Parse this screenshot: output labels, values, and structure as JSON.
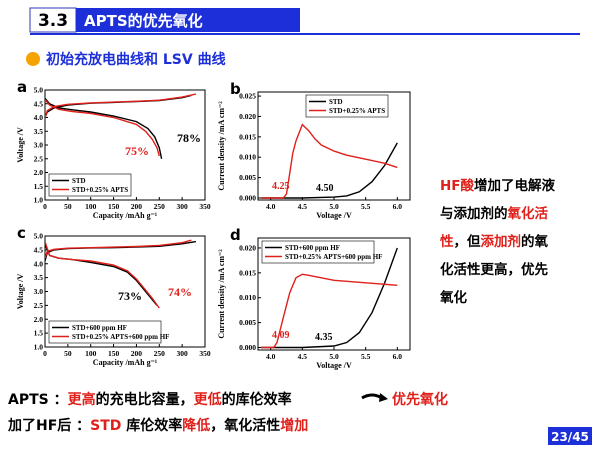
{
  "header": {
    "number": "3.3",
    "title": "APTS的优先氧化"
  },
  "subtitle": "初始充放电曲线和 LSV 曲线",
  "charts": [
    {
      "type": "line",
      "panel": "a",
      "xlabel": "Capacity /mAh g⁻¹",
      "ylabel": "Voltage /V",
      "xlim": [
        0,
        350
      ],
      "ylim": [
        1.0,
        5.0
      ],
      "xticks": [
        0,
        50,
        100,
        150,
        200,
        250,
        300,
        350
      ],
      "yticks": [
        {
          "value": 1,
          "label": "1.0"
        },
        1.5,
        {
          "value": 2,
          "label": "2.0"
        },
        2.5,
        {
          "value": 3,
          "label": "3.0"
        },
        3.5,
        {
          "value": 4,
          "label": "4.0"
        },
        4.5,
        {
          "value": 5,
          "label": "5.0"
        }
      ],
      "legend": "lower left",
      "series": [
        {
          "name": "STD",
          "color": "#000000",
          "x": [
            0,
            5,
            20,
            50,
            100,
            150,
            200,
            250,
            300,
            320,
            null,
            0,
            10,
            30,
            60,
            100,
            150,
            200,
            225,
            240,
            250,
            255
          ],
          "values": [
            4.0,
            4.2,
            4.35,
            4.45,
            4.52,
            4.55,
            4.58,
            4.62,
            4.72,
            4.8,
            null,
            4.7,
            4.5,
            4.35,
            4.28,
            4.2,
            4.05,
            3.85,
            3.6,
            3.3,
            2.9,
            2.5
          ]
        },
        {
          "name": "STD+0.25% APTS",
          "color": "#e0201b",
          "x": [
            0,
            5,
            20,
            50,
            100,
            150,
            200,
            250,
            300,
            330,
            null,
            0,
            10,
            30,
            60,
            100,
            150,
            200,
            220,
            235,
            245,
            250
          ],
          "values": [
            4.0,
            4.25,
            4.4,
            4.48,
            4.53,
            4.56,
            4.59,
            4.63,
            4.74,
            4.85,
            null,
            4.65,
            4.45,
            4.3,
            4.22,
            4.15,
            4.0,
            3.75,
            3.5,
            3.2,
            2.9,
            2.6
          ]
        }
      ],
      "annotations": [
        {
          "text": "75%",
          "color": "#e0201b"
        },
        {
          "text": "78%",
          "color": "#000000"
        }
      ]
    },
    {
      "type": "line",
      "panel": "b",
      "xlabel": "Voltage /V",
      "ylabel": "Current density /mA cm⁻²",
      "xlim": [
        3.8,
        6.2
      ],
      "ylim": [
        -0.0005,
        0.026
      ],
      "xticks": [
        {
          "value": 4,
          "label": "4.0"
        },
        4.5,
        {
          "value": 5,
          "label": "5.0"
        },
        5.5,
        {
          "value": 6,
          "label": "6.0"
        }
      ],
      "yticks": [
        {
          "value": 0,
          "label": "0.000"
        },
        0.005,
        {
          "value": 0.01,
          "label": "0.010"
        },
        0.015,
        {
          "value": 0.02,
          "label": "0.020"
        },
        0.025
      ],
      "legend": "upper right",
      "series": [
        {
          "name": "STD",
          "color": "#000000",
          "x": [
            3.85,
            4.5,
            5.0,
            5.2,
            5.4,
            5.6,
            5.8,
            6.0
          ],
          "values": [
            0,
            0,
            0.0002,
            0.0005,
            0.0015,
            0.004,
            0.008,
            0.0135
          ]
        },
        {
          "name": "STD+0.25% APTS",
          "color": "#e0201b",
          "x": [
            3.85,
            4.2,
            4.25,
            4.3,
            4.35,
            4.4,
            4.5,
            4.6,
            4.7,
            4.8,
            5.0,
            5.2,
            5.5,
            5.8,
            6.0
          ],
          "values": [
            0,
            0,
            0.001,
            0.006,
            0.011,
            0.014,
            0.018,
            0.0165,
            0.0145,
            0.013,
            0.0115,
            0.0105,
            0.0095,
            0.0085,
            0.0075
          ]
        }
      ],
      "annotations": [
        {
          "text": "4.25",
          "color": "#e0201b"
        },
        {
          "text": "4.50",
          "color": "#000000"
        }
      ]
    },
    {
      "type": "line",
      "panel": "c",
      "xlabel": "Capacity /mAh g⁻¹",
      "ylabel": "Voltage /V",
      "xlim": [
        0,
        350
      ],
      "ylim": [
        1.0,
        5.0
      ],
      "xticks": [
        0,
        50,
        100,
        150,
        200,
        250,
        300,
        350
      ],
      "yticks": [
        {
          "value": 1,
          "label": "1.0"
        },
        1.5,
        {
          "value": 2,
          "label": "2.0"
        },
        2.5,
        {
          "value": 3,
          "label": "3.0"
        },
        3.5,
        {
          "value": 4,
          "label": "4.0"
        },
        4.5,
        {
          "value": 5,
          "label": "5.0"
        }
      ],
      "legend": "lower left",
      "series": [
        {
          "name": "STD+600 ppm HF",
          "color": "#000000",
          "x": [
            0,
            5,
            20,
            50,
            100,
            150,
            200,
            250,
            300,
            330,
            null,
            0,
            10,
            30,
            60,
            100,
            150,
            180,
            200,
            220,
            235,
            245
          ],
          "values": [
            4.1,
            4.4,
            4.5,
            4.55,
            4.57,
            4.58,
            4.6,
            4.63,
            4.72,
            4.8,
            null,
            4.7,
            4.3,
            4.2,
            4.15,
            4.05,
            3.9,
            3.7,
            3.4,
            3.0,
            2.7,
            2.5
          ]
        },
        {
          "name": "STD+0.25% APTS+600 ppm HF",
          "color": "#e0201b",
          "x": [
            0,
            5,
            20,
            50,
            100,
            150,
            200,
            250,
            300,
            320,
            null,
            0,
            10,
            30,
            60,
            100,
            150,
            180,
            200,
            220,
            235,
            250
          ],
          "values": [
            4.2,
            4.45,
            4.52,
            4.56,
            4.58,
            4.6,
            4.62,
            4.66,
            4.76,
            4.85,
            null,
            4.8,
            4.3,
            4.2,
            4.15,
            4.1,
            3.95,
            3.75,
            3.45,
            3.05,
            2.75,
            2.4
          ]
        }
      ],
      "annotations": [
        {
          "text": "73%",
          "color": "#000000"
        },
        {
          "text": "74%",
          "color": "#e0201b"
        }
      ]
    },
    {
      "type": "line",
      "panel": "d",
      "xlabel": "Voltage /V",
      "ylabel": "Current density /mA cm⁻²",
      "xlim": [
        3.8,
        6.2
      ],
      "ylim": [
        -0.0005,
        0.022
      ],
      "xticks": [
        {
          "value": 4,
          "label": "4.0"
        },
        4.5,
        {
          "value": 5,
          "label": "5.0"
        },
        5.5,
        {
          "value": 6,
          "label": "6.0"
        }
      ],
      "yticks": [
        {
          "value": 0,
          "label": "0.000"
        },
        0.005,
        {
          "value": 0.01,
          "label": "0.010"
        },
        0.015,
        {
          "value": 0.02,
          "label": "0.020"
        }
      ],
      "legend": "upper left",
      "series": [
        {
          "name": "STD+600 ppm HF",
          "color": "#000000",
          "x": [
            3.85,
            4.5,
            5.0,
            5.2,
            5.4,
            5.6,
            5.8,
            6.0
          ],
          "values": [
            0,
            0,
            0.0003,
            0.001,
            0.003,
            0.007,
            0.013,
            0.02
          ]
        },
        {
          "name": "STD+0.25% APTS+600 ppm HF",
          "color": "#e0201b",
          "x": [
            3.85,
            4.05,
            4.1,
            4.2,
            4.3,
            4.4,
            4.5,
            4.6,
            4.8,
            5.0,
            5.5,
            6.0
          ],
          "values": [
            0,
            0,
            0.001,
            0.006,
            0.011,
            0.014,
            0.0147,
            0.0145,
            0.014,
            0.0135,
            0.013,
            0.0125
          ]
        }
      ],
      "annotations": [
        {
          "text": "4.09",
          "color": "#e0201b"
        },
        {
          "text": "4.35",
          "color": "#000000"
        }
      ]
    }
  ],
  "note": [
    [
      {
        "text": "HF酸",
        "color": "#e0201b"
      },
      {
        "text": "增加了电解液",
        "color": "#000000"
      }
    ],
    [
      {
        "text": "与添加剂的",
        "color": "#000000"
      },
      {
        "text": "氧化活",
        "color": "#e0201b"
      }
    ],
    [
      {
        "text": "性",
        "color": "#e0201b"
      },
      {
        "text": "，但",
        "color": "#000000"
      },
      {
        "text": "添加剂",
        "color": "#e0201b"
      },
      {
        "text": "的氧",
        "color": "#000000"
      }
    ],
    [
      {
        "text": "化活性更高，优先",
        "color": "#000000"
      }
    ],
    [
      {
        "text": "氧化",
        "color": "#000000"
      }
    ]
  ],
  "summary": [
    [
      {
        "text": "APTS ：",
        "color": "#000000"
      },
      {
        "text": "更高",
        "color": "#e0201b"
      },
      {
        "text": "的充电比容量，",
        "color": "#000000"
      },
      {
        "text": "更低",
        "color": "#e0201b"
      },
      {
        "text": "的库伦效率",
        "color": "#000000"
      }
    ],
    [
      {
        "text": "加了HF后 ：",
        "color": "#000000"
      },
      {
        "text": "STD",
        "color": "#e0201b"
      },
      {
        "text": " 库伦效率",
        "color": "#000000"
      },
      {
        "text": "降低",
        "color": "#e0201b"
      },
      {
        "text": "，氧化活性",
        "color": "#000000"
      },
      {
        "text": "增加",
        "color": "#e0201b"
      }
    ]
  ],
  "conclusion": {
    "text": "优先氧化",
    "color": "#e0201b"
  },
  "page": "23/45"
}
